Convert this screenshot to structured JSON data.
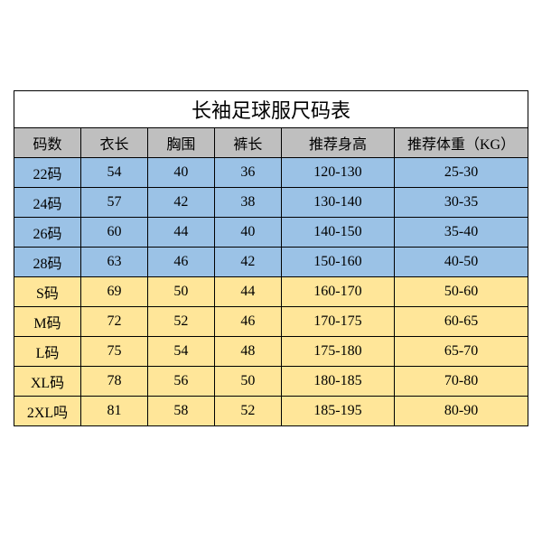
{
  "table": {
    "title": "长袖足球服尺码表",
    "columns": [
      "码数",
      "衣长",
      "胸围",
      "裤长",
      "推荐身高",
      "推荐体重（KG）"
    ],
    "col_widths_pct": [
      13,
      13,
      13,
      13,
      22,
      26
    ],
    "header_bg": "#bfbfbf",
    "border_color": "#000000",
    "title_bg": "#ffffff",
    "title_fontsize": 22,
    "cell_fontsize": 16,
    "row_colors": {
      "blue": "#9bc2e6",
      "yellow": "#ffe699"
    },
    "rows": [
      {
        "color": "blue",
        "cells": [
          "22码",
          "54",
          "40",
          "36",
          "120-130",
          "25-30"
        ]
      },
      {
        "color": "blue",
        "cells": [
          "24码",
          "57",
          "42",
          "38",
          "130-140",
          "30-35"
        ]
      },
      {
        "color": "blue",
        "cells": [
          "26码",
          "60",
          "44",
          "40",
          "140-150",
          "35-40"
        ]
      },
      {
        "color": "blue",
        "cells": [
          "28码",
          "63",
          "46",
          "42",
          "150-160",
          "40-50"
        ]
      },
      {
        "color": "yellow",
        "cells": [
          "S码",
          "69",
          "50",
          "44",
          "160-170",
          "50-60"
        ]
      },
      {
        "color": "yellow",
        "cells": [
          "M码",
          "72",
          "52",
          "46",
          "170-175",
          "60-65"
        ]
      },
      {
        "color": "yellow",
        "cells": [
          "L码",
          "75",
          "54",
          "48",
          "175-180",
          "65-70"
        ]
      },
      {
        "color": "yellow",
        "cells": [
          "XL码",
          "78",
          "56",
          "50",
          "180-185",
          "70-80"
        ]
      },
      {
        "color": "yellow",
        "cells": [
          "2XL吗",
          "81",
          "58",
          "52",
          "185-195",
          "80-90"
        ]
      }
    ]
  }
}
